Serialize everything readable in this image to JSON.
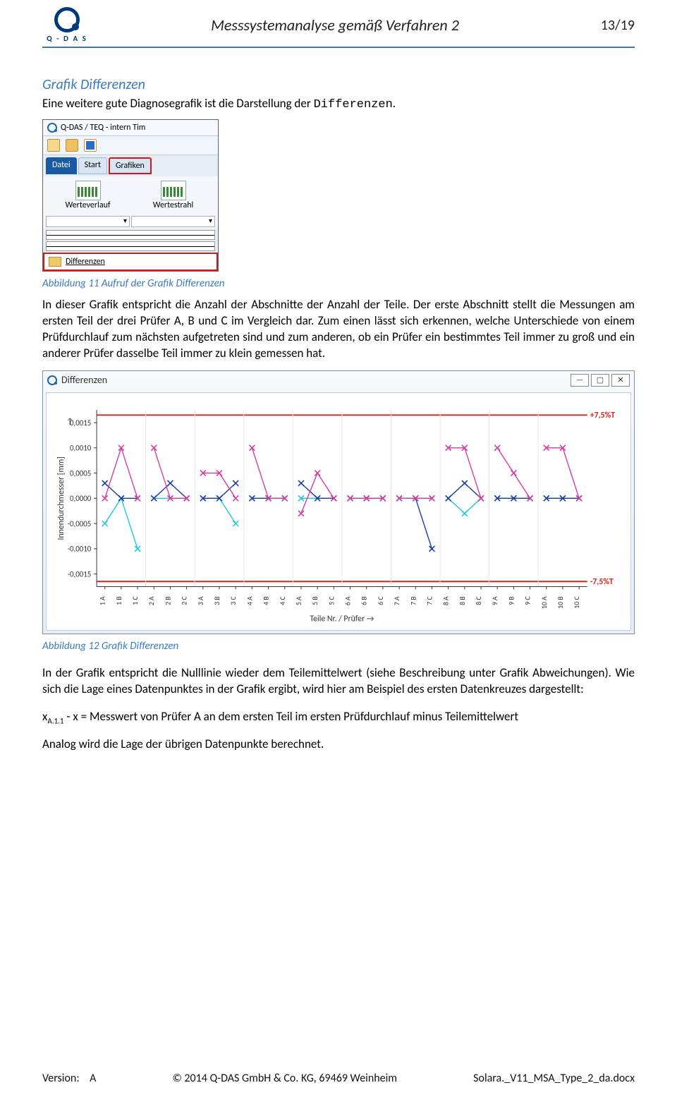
{
  "header": {
    "logo_text": "Q - D A S",
    "title": "Messsystemanalyse gemäß Verfahren 2",
    "page": "13/19"
  },
  "section": {
    "title": "Grafik Differenzen",
    "intro_pre": "Eine weitere gute Diagnosegrafik ist die Darstellung der ",
    "intro_mono": "Differenzen",
    "intro_post": "."
  },
  "ribbon": {
    "app_title": "Q-DAS / TEQ - intern Tim",
    "tabs": [
      "Datei",
      "Start",
      "Grafiken"
    ],
    "big_buttons": [
      "Werteverlauf",
      "Wertestrahl"
    ],
    "diff_label": "Differenzen"
  },
  "caption1": "Abbildung 11 Aufruf der Grafik Differenzen",
  "para1": "In dieser Grafik entspricht die Anzahl der Abschnitte der Anzahl der Teile. Der erste Abschnitt stellt die Messungen am ersten Teil der drei Prüfer A, B und C im Vergleich dar. Zum einen lässt sich erkennen, welche Unterschiede von einem Prüfdurchlauf zum nächsten aufgetreten sind und zum anderen, ob ein Prüfer ein bestimmtes Teil immer zu groß und ein anderer Prüfer dasselbe Teil immer zu klein gemessen hat.",
  "chart": {
    "window_title": "Differenzen",
    "ylabel": "Innendurchmesser [mm]",
    "xlabel": "Teile Nr. /  Prüfer →",
    "upper_limit_label": "+7,5%T",
    "lower_limit_label": "-7,5%T",
    "ylim": [
      -0.00175,
      0.00175
    ],
    "yticks": [
      -0.0015,
      -0.001,
      -0.0005,
      0.0,
      0.0005,
      0.001,
      0.0015
    ],
    "ytick_labels": [
      "-0,0015",
      "-0,0010",
      "-0,0005",
      "0,0000",
      "0,0005",
      "0,0010",
      "0,0015"
    ],
    "limit_y": [
      0.00165,
      -0.00165
    ],
    "colors": {
      "blue": "#1a3aa8",
      "magenta": "#d63aa0",
      "cyan": "#1ac8e0",
      "limit": "#e02020",
      "axis": "#333333",
      "bg": "#ffffff"
    },
    "marker": "x",
    "n_parts": 10,
    "pruefer": [
      "A",
      "B",
      "C"
    ],
    "x_categories": [
      "1 A",
      "1 B",
      "1 C",
      "2 A",
      "2 B",
      "2 C",
      "3 A",
      "3 B",
      "3 C",
      "4 A",
      "4 B",
      "4 C",
      "5 A",
      "5 B",
      "5 C",
      "6 A",
      "6 B",
      "6 C",
      "7 A",
      "7 B",
      "7 C",
      "8 A",
      "8 B",
      "8 C",
      "9 A",
      "9 B",
      "9 C",
      "10 A",
      "10 B",
      "10 C"
    ],
    "series": {
      "blue": [
        0.0003,
        0,
        0,
        0,
        0.0003,
        0,
        0,
        0,
        0.0003,
        0,
        0,
        0,
        0.0003,
        0,
        0,
        0,
        0,
        0,
        0,
        0,
        -0.001,
        0,
        0.0003,
        0,
        0,
        0,
        0,
        0,
        0,
        0
      ],
      "magenta": [
        0,
        0.001,
        0,
        0.001,
        0,
        0,
        0.0005,
        0.0005,
        0,
        0.001,
        0,
        0,
        -0.0003,
        0.0005,
        0,
        0,
        0,
        0,
        0,
        0,
        0,
        0.001,
        0.001,
        0,
        0.001,
        0.0005,
        0,
        0.001,
        0.001,
        0
      ],
      "cyan": [
        -0.0005,
        0,
        -0.001,
        0,
        0,
        0,
        0,
        0,
        -0.0005,
        0,
        0,
        0,
        0,
        0,
        0,
        0,
        0,
        0,
        0,
        0,
        0,
        0,
        -0.0003,
        0,
        0,
        0,
        0,
        0,
        0,
        0
      ]
    }
  },
  "caption2": "Abbildung 12 Grafik Differenzen",
  "para2": "In der Grafik entspricht die Nulllinie wieder dem Teilemittelwert (siehe Beschreibung unter Grafik Abweichungen). Wie sich die Lage eines Datenpunktes in der Grafik ergibt, wird hier am Beispiel des ersten Datenkreuzes dargestellt:",
  "formula": {
    "lhs": "x",
    "sub": "A.1.1",
    "mid": " - x =  ",
    "rhs": "Messwert von Prüfer A an dem ersten Teil im ersten Prüfdurchlauf minus Teilemittelwert"
  },
  "para3": "Analog wird die Lage der übrigen Datenpunkte berechnet.",
  "footer": {
    "version_label": "Version:",
    "version": "A",
    "copyright": "© 2014  Q-DAS GmbH & Co. KG,  69469 Weinheim",
    "filename": "Solara._V11_MSA_Type_2_da.docx"
  }
}
